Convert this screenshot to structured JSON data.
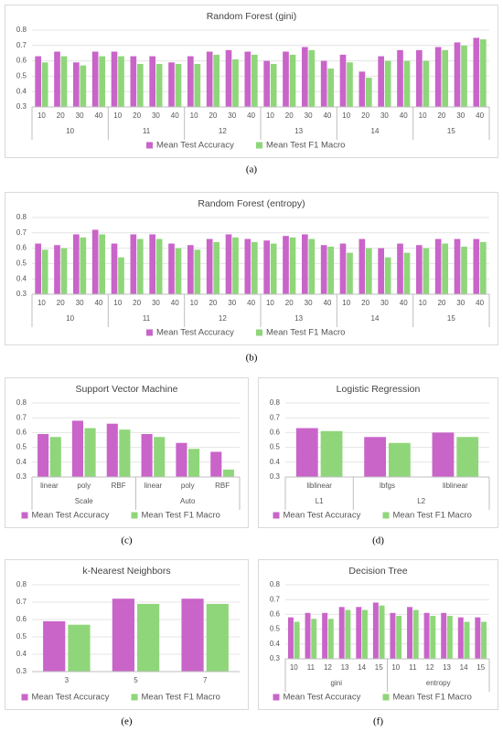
{
  "chart_data": [
    {
      "type": "bar",
      "title": "Random Forest (gini)",
      "caption": "(a)",
      "groups": [
        {
          "label": "10",
          "categories": [
            "10",
            "20",
            "30",
            "40"
          ]
        },
        {
          "label": "11",
          "categories": [
            "10",
            "20",
            "30",
            "40"
          ]
        },
        {
          "label": "12",
          "categories": [
            "10",
            "20",
            "30",
            "40"
          ]
        },
        {
          "label": "13",
          "categories": [
            "10",
            "20",
            "30",
            "40"
          ]
        },
        {
          "label": "14",
          "categories": [
            "10",
            "20",
            "30",
            "40"
          ]
        },
        {
          "label": "15",
          "categories": [
            "10",
            "20",
            "30",
            "40"
          ]
        }
      ],
      "series": [
        {
          "name": "Mean Test Accuracy",
          "color": "#c964c9",
          "values": [
            0.63,
            0.66,
            0.59,
            0.66,
            0.66,
            0.63,
            0.63,
            0.59,
            0.63,
            0.66,
            0.67,
            0.66,
            0.6,
            0.66,
            0.69,
            0.6,
            0.64,
            0.53,
            0.63,
            0.67,
            0.67,
            0.69,
            0.72,
            0.75
          ]
        },
        {
          "name": "Mean Test F1 Macro",
          "color": "#8fd67a",
          "values": [
            0.59,
            0.63,
            0.57,
            0.63,
            0.63,
            0.58,
            0.58,
            0.58,
            0.58,
            0.64,
            0.61,
            0.64,
            0.58,
            0.64,
            0.67,
            0.55,
            0.59,
            0.49,
            0.6,
            0.6,
            0.6,
            0.67,
            0.7,
            0.74
          ]
        }
      ],
      "ylim": [
        0.3,
        0.8
      ],
      "yticks": [
        0.3,
        0.4,
        0.5,
        0.6,
        0.7,
        0.8
      ],
      "grid": true
    },
    {
      "type": "bar",
      "title": "Random Forest (entropy)",
      "caption": "(b)",
      "groups": [
        {
          "label": "10",
          "categories": [
            "10",
            "20",
            "30",
            "40"
          ]
        },
        {
          "label": "11",
          "categories": [
            "10",
            "20",
            "30",
            "40"
          ]
        },
        {
          "label": "12",
          "categories": [
            "10",
            "20",
            "30",
            "40"
          ]
        },
        {
          "label": "13",
          "categories": [
            "10",
            "20",
            "30",
            "40"
          ]
        },
        {
          "label": "14",
          "categories": [
            "10",
            "20",
            "30",
            "40"
          ]
        },
        {
          "label": "15",
          "categories": [
            "10",
            "20",
            "30",
            "40"
          ]
        }
      ],
      "series": [
        {
          "name": "Mean Test Accuracy",
          "color": "#c964c9",
          "values": [
            0.63,
            0.62,
            0.69,
            0.72,
            0.63,
            0.69,
            0.69,
            0.63,
            0.62,
            0.66,
            0.69,
            0.66,
            0.65,
            0.68,
            0.69,
            0.62,
            0.63,
            0.66,
            0.6,
            0.63,
            0.62,
            0.66,
            0.66,
            0.66
          ]
        },
        {
          "name": "Mean Test F1 Macro",
          "color": "#8fd67a",
          "values": [
            0.59,
            0.6,
            0.67,
            0.69,
            0.54,
            0.66,
            0.66,
            0.6,
            0.59,
            0.64,
            0.67,
            0.64,
            0.63,
            0.67,
            0.66,
            0.61,
            0.57,
            0.6,
            0.54,
            0.57,
            0.6,
            0.63,
            0.61,
            0.64
          ]
        }
      ],
      "ylim": [
        0.3,
        0.8
      ],
      "yticks": [
        0.3,
        0.4,
        0.5,
        0.6,
        0.7,
        0.8
      ],
      "grid": true
    },
    {
      "type": "bar",
      "title": "Support Vector Machine",
      "caption": "(c)",
      "groups": [
        {
          "label": "Scale",
          "categories": [
            "linear",
            "poly",
            "RBF"
          ]
        },
        {
          "label": "Auto",
          "categories": [
            "linear",
            "poly",
            "RBF"
          ]
        }
      ],
      "series": [
        {
          "name": "Mean Test Accuracy",
          "color": "#c964c9",
          "values": [
            0.59,
            0.68,
            0.66,
            0.59,
            0.53,
            0.47
          ]
        },
        {
          "name": "Mean Test F1 Macro",
          "color": "#8fd67a",
          "values": [
            0.57,
            0.63,
            0.62,
            0.57,
            0.49,
            0.35
          ]
        }
      ],
      "ylim": [
        0.3,
        0.8
      ],
      "yticks": [
        0.3,
        0.4,
        0.5,
        0.6,
        0.7,
        0.8
      ],
      "grid": true
    },
    {
      "type": "bar",
      "title": "Logistic Regression",
      "caption": "(d)",
      "groups": [
        {
          "label": "L1",
          "categories": [
            "liblinear"
          ]
        },
        {
          "label": "L2",
          "categories": [
            "lbfgs",
            "liblinear"
          ]
        }
      ],
      "series": [
        {
          "name": "Mean Test Accuracy",
          "color": "#c964c9",
          "values": [
            0.63,
            0.57,
            0.6
          ]
        },
        {
          "name": "Mean Test F1 Macro",
          "color": "#8fd67a",
          "values": [
            0.61,
            0.53,
            0.57
          ]
        }
      ],
      "ylim": [
        0.3,
        0.8
      ],
      "yticks": [
        0.3,
        0.4,
        0.5,
        0.6,
        0.7,
        0.8
      ],
      "grid": true
    },
    {
      "type": "bar",
      "title": "k-Nearest Neighbors",
      "caption": "(e)",
      "categories": [
        "3",
        "5",
        "7"
      ],
      "series": [
        {
          "name": "Mean Test Accuracy",
          "color": "#c964c9",
          "values": [
            0.59,
            0.72,
            0.72
          ]
        },
        {
          "name": "Mean Test F1 Macro",
          "color": "#8fd67a",
          "values": [
            0.57,
            0.69,
            0.69
          ]
        }
      ],
      "ylim": [
        0.3,
        0.8
      ],
      "yticks": [
        0.3,
        0.4,
        0.5,
        0.6,
        0.7,
        0.8
      ],
      "grid": true
    },
    {
      "type": "bar",
      "title": "Decision Tree",
      "caption": "(f)",
      "groups": [
        {
          "label": "gini",
          "categories": [
            "10",
            "11",
            "12",
            "13",
            "14",
            "15"
          ]
        },
        {
          "label": "entropy",
          "categories": [
            "10",
            "11",
            "12",
            "13",
            "14",
            "15"
          ]
        }
      ],
      "series": [
        {
          "name": "Mean Test Accuracy",
          "color": "#c964c9",
          "values": [
            0.58,
            0.61,
            0.61,
            0.65,
            0.65,
            0.68,
            0.61,
            0.65,
            0.61,
            0.61,
            0.58,
            0.58
          ]
        },
        {
          "name": "Mean Test F1 Macro",
          "color": "#8fd67a",
          "values": [
            0.55,
            0.57,
            0.57,
            0.63,
            0.63,
            0.66,
            0.59,
            0.63,
            0.59,
            0.59,
            0.55,
            0.55
          ]
        }
      ],
      "ylim": [
        0.3,
        0.8
      ],
      "yticks": [
        0.3,
        0.4,
        0.5,
        0.6,
        0.7,
        0.8
      ],
      "grid": true
    }
  ]
}
